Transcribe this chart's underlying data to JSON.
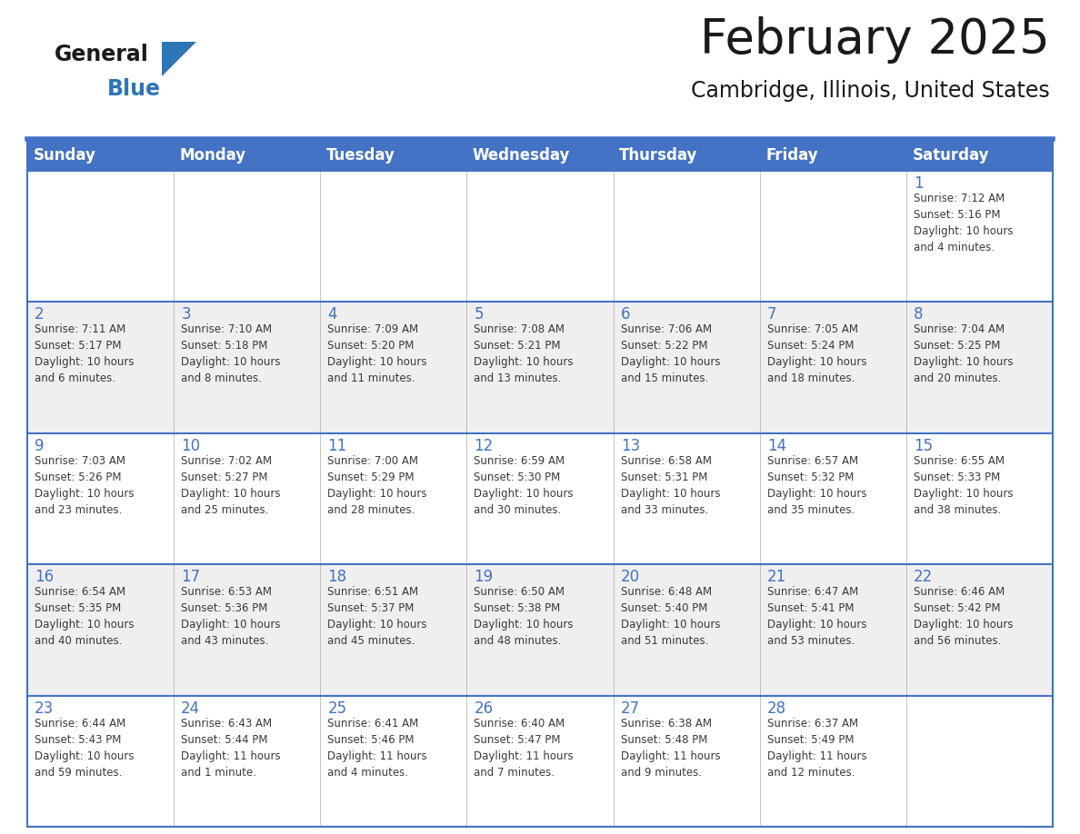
{
  "title": "February 2025",
  "subtitle": "Cambridge, Illinois, United States",
  "header_bg": "#4472C4",
  "header_text_color": "#FFFFFF",
  "day_names": [
    "Sunday",
    "Monday",
    "Tuesday",
    "Wednesday",
    "Thursday",
    "Friday",
    "Saturday"
  ],
  "row_bg_light": "#EFEFEF",
  "row_bg_white": "#FFFFFF",
  "border_color": "#4472C4",
  "cell_border_color": "#CCCCCC",
  "day_number_color": "#4472C4",
  "info_text_color": "#3A3A3A",
  "logo_general_color": "#1A1A1A",
  "logo_blue_color": "#2E75B6",
  "logo_triangle_color": "#2E75B6",
  "weeks": [
    {
      "bg": "#FFFFFF",
      "days": [
        {
          "day": null,
          "info": null
        },
        {
          "day": null,
          "info": null
        },
        {
          "day": null,
          "info": null
        },
        {
          "day": null,
          "info": null
        },
        {
          "day": null,
          "info": null
        },
        {
          "day": null,
          "info": null
        },
        {
          "day": 1,
          "info": "Sunrise: 7:12 AM\nSunset: 5:16 PM\nDaylight: 10 hours\nand 4 minutes."
        }
      ]
    },
    {
      "bg": "#EFEFEF",
      "days": [
        {
          "day": 2,
          "info": "Sunrise: 7:11 AM\nSunset: 5:17 PM\nDaylight: 10 hours\nand 6 minutes."
        },
        {
          "day": 3,
          "info": "Sunrise: 7:10 AM\nSunset: 5:18 PM\nDaylight: 10 hours\nand 8 minutes."
        },
        {
          "day": 4,
          "info": "Sunrise: 7:09 AM\nSunset: 5:20 PM\nDaylight: 10 hours\nand 11 minutes."
        },
        {
          "day": 5,
          "info": "Sunrise: 7:08 AM\nSunset: 5:21 PM\nDaylight: 10 hours\nand 13 minutes."
        },
        {
          "day": 6,
          "info": "Sunrise: 7:06 AM\nSunset: 5:22 PM\nDaylight: 10 hours\nand 15 minutes."
        },
        {
          "day": 7,
          "info": "Sunrise: 7:05 AM\nSunset: 5:24 PM\nDaylight: 10 hours\nand 18 minutes."
        },
        {
          "day": 8,
          "info": "Sunrise: 7:04 AM\nSunset: 5:25 PM\nDaylight: 10 hours\nand 20 minutes."
        }
      ]
    },
    {
      "bg": "#FFFFFF",
      "days": [
        {
          "day": 9,
          "info": "Sunrise: 7:03 AM\nSunset: 5:26 PM\nDaylight: 10 hours\nand 23 minutes."
        },
        {
          "day": 10,
          "info": "Sunrise: 7:02 AM\nSunset: 5:27 PM\nDaylight: 10 hours\nand 25 minutes."
        },
        {
          "day": 11,
          "info": "Sunrise: 7:00 AM\nSunset: 5:29 PM\nDaylight: 10 hours\nand 28 minutes."
        },
        {
          "day": 12,
          "info": "Sunrise: 6:59 AM\nSunset: 5:30 PM\nDaylight: 10 hours\nand 30 minutes."
        },
        {
          "day": 13,
          "info": "Sunrise: 6:58 AM\nSunset: 5:31 PM\nDaylight: 10 hours\nand 33 minutes."
        },
        {
          "day": 14,
          "info": "Sunrise: 6:57 AM\nSunset: 5:32 PM\nDaylight: 10 hours\nand 35 minutes."
        },
        {
          "day": 15,
          "info": "Sunrise: 6:55 AM\nSunset: 5:33 PM\nDaylight: 10 hours\nand 38 minutes."
        }
      ]
    },
    {
      "bg": "#EFEFEF",
      "days": [
        {
          "day": 16,
          "info": "Sunrise: 6:54 AM\nSunset: 5:35 PM\nDaylight: 10 hours\nand 40 minutes."
        },
        {
          "day": 17,
          "info": "Sunrise: 6:53 AM\nSunset: 5:36 PM\nDaylight: 10 hours\nand 43 minutes."
        },
        {
          "day": 18,
          "info": "Sunrise: 6:51 AM\nSunset: 5:37 PM\nDaylight: 10 hours\nand 45 minutes."
        },
        {
          "day": 19,
          "info": "Sunrise: 6:50 AM\nSunset: 5:38 PM\nDaylight: 10 hours\nand 48 minutes."
        },
        {
          "day": 20,
          "info": "Sunrise: 6:48 AM\nSunset: 5:40 PM\nDaylight: 10 hours\nand 51 minutes."
        },
        {
          "day": 21,
          "info": "Sunrise: 6:47 AM\nSunset: 5:41 PM\nDaylight: 10 hours\nand 53 minutes."
        },
        {
          "day": 22,
          "info": "Sunrise: 6:46 AM\nSunset: 5:42 PM\nDaylight: 10 hours\nand 56 minutes."
        }
      ]
    },
    {
      "bg": "#FFFFFF",
      "days": [
        {
          "day": 23,
          "info": "Sunrise: 6:44 AM\nSunset: 5:43 PM\nDaylight: 10 hours\nand 59 minutes."
        },
        {
          "day": 24,
          "info": "Sunrise: 6:43 AM\nSunset: 5:44 PM\nDaylight: 11 hours\nand 1 minute."
        },
        {
          "day": 25,
          "info": "Sunrise: 6:41 AM\nSunset: 5:46 PM\nDaylight: 11 hours\nand 4 minutes."
        },
        {
          "day": 26,
          "info": "Sunrise: 6:40 AM\nSunset: 5:47 PM\nDaylight: 11 hours\nand 7 minutes."
        },
        {
          "day": 27,
          "info": "Sunrise: 6:38 AM\nSunset: 5:48 PM\nDaylight: 11 hours\nand 9 minutes."
        },
        {
          "day": 28,
          "info": "Sunrise: 6:37 AM\nSunset: 5:49 PM\nDaylight: 11 hours\nand 12 minutes."
        },
        {
          "day": null,
          "info": null
        }
      ]
    }
  ]
}
